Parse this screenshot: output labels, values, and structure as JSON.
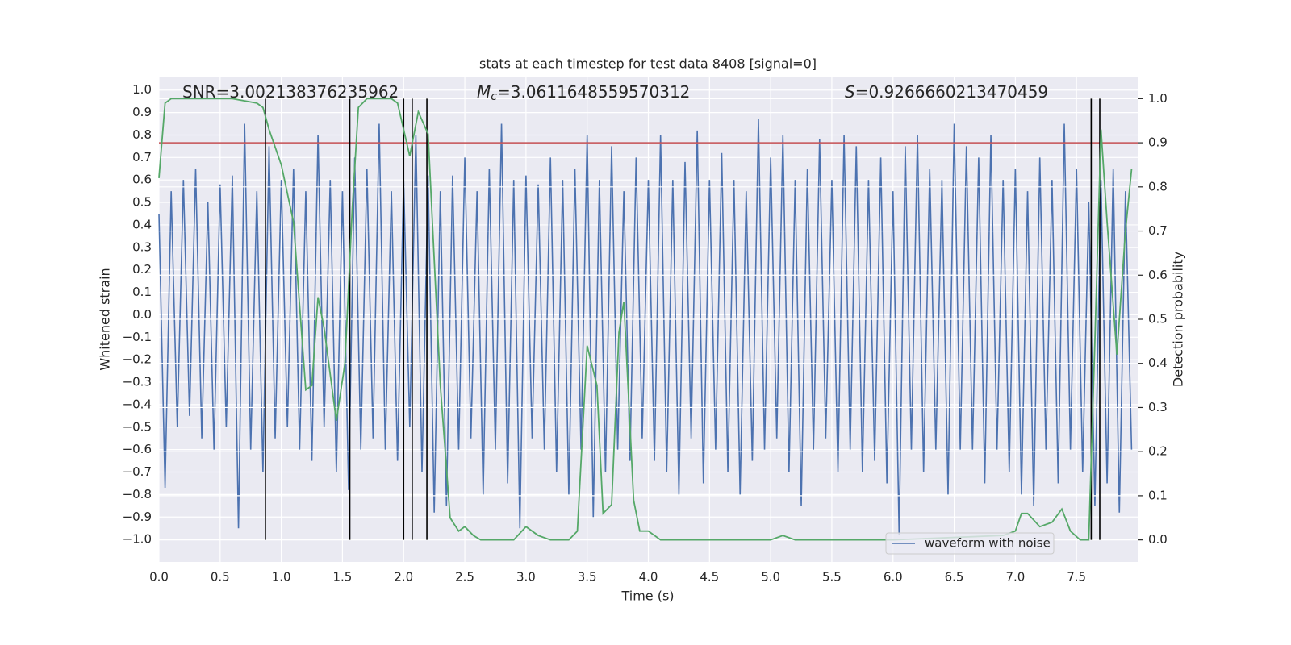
{
  "chart_data": {
    "type": "line",
    "title": "stats at each timestep for test data 8408 [signal=0]",
    "xlabel": "Time (s)",
    "ylabel": "Whitened strain",
    "y2label": "Detection probability",
    "xlim": [
      0,
      8.0
    ],
    "ylim": [
      -1.1,
      1.06
    ],
    "y2lim": [
      -0.05,
      1.05
    ],
    "xticks": [
      {
        "value": 0,
        "label": "0.0"
      },
      0.5,
      {
        "value": 1,
        "label": "1.0"
      },
      1.5,
      {
        "value": 2,
        "label": "2.0"
      },
      2.5,
      {
        "value": 3,
        "label": "3.0"
      },
      3.5,
      {
        "value": 4,
        "label": "4.0"
      },
      4.5,
      {
        "value": 5,
        "label": "5.0"
      },
      5.5,
      {
        "value": 6,
        "label": "6.0"
      },
      6.5,
      {
        "value": 7,
        "label": "7.0"
      },
      7.5
    ],
    "yticks": [
      {
        "value": 1,
        "label": "1.0"
      },
      0.9,
      0.8,
      0.7,
      0.6,
      0.5,
      0.4,
      0.3,
      0.2,
      0.1,
      {
        "value": 0,
        "label": "0.0"
      },
      {
        "value": -0.1,
        "label": "−0.1"
      },
      {
        "value": -0.2,
        "label": "−0.2"
      },
      {
        "value": -0.3,
        "label": "−0.3"
      },
      {
        "value": -0.4,
        "label": "−0.4"
      },
      {
        "value": -0.5,
        "label": "−0.5"
      },
      {
        "value": -0.6,
        "label": "−0.6"
      },
      {
        "value": -0.7,
        "label": "−0.7"
      },
      {
        "value": -0.8,
        "label": "−0.8"
      },
      {
        "value": -0.9,
        "label": "−0.9"
      },
      {
        "value": -1,
        "label": "−1.0"
      }
    ],
    "y2ticks": [
      {
        "value": 0,
        "label": "0.0"
      },
      0.1,
      0.2,
      0.3,
      0.4,
      0.5,
      0.6,
      0.7,
      0.8,
      0.9,
      {
        "value": 1,
        "label": "1.0"
      }
    ],
    "grid": true,
    "legend": "lower right",
    "annotations": [
      {
        "text": "SNR=3.002138376235962"
      },
      {
        "symbol": "M",
        "subscript": "c",
        "text": "=3.0611648559570312"
      },
      {
        "symbol": "S",
        "text": "=0.9266660213470459"
      }
    ],
    "threshold": {
      "value": 0.9,
      "color": "#c44e52",
      "axis": "y2"
    },
    "vlines": {
      "x": [
        0.87,
        1.56,
        2.0,
        2.07,
        2.19,
        7.62,
        7.69
      ],
      "ymin": 0,
      "ymax": 1,
      "color": "#000000",
      "axis": "y2"
    },
    "series": [
      {
        "name": "waveform with noise",
        "color": "#4c72b0",
        "x": [
          0,
          0.05,
          0.1,
          0.15,
          0.2,
          0.25,
          0.3,
          0.35,
          0.4,
          0.45,
          0.5,
          0.55,
          0.6,
          0.65,
          0.7,
          0.75,
          0.8,
          0.85,
          0.9,
          0.95,
          1.0,
          1.05,
          1.1,
          1.15,
          1.2,
          1.25,
          1.3,
          1.35,
          1.4,
          1.45,
          1.5,
          1.55,
          1.6,
          1.65,
          1.7,
          1.75,
          1.8,
          1.85,
          1.9,
          1.95,
          2.0,
          2.05,
          2.1,
          2.15,
          2.2,
          2.25,
          2.3,
          2.35,
          2.4,
          2.45,
          2.5,
          2.55,
          2.6,
          2.65,
          2.7,
          2.75,
          2.8,
          2.85,
          2.9,
          2.95,
          3.0,
          3.05,
          3.1,
          3.15,
          3.2,
          3.25,
          3.3,
          3.35,
          3.4,
          3.45,
          3.5,
          3.55,
          3.6,
          3.65,
          3.7,
          3.75,
          3.8,
          3.85,
          3.9,
          3.95,
          4.0,
          4.05,
          4.1,
          4.15,
          4.2,
          4.25,
          4.3,
          4.35,
          4.4,
          4.45,
          4.5,
          4.55,
          4.6,
          4.65,
          4.7,
          4.75,
          4.8,
          4.85,
          4.9,
          4.95,
          5.0,
          5.05,
          5.1,
          5.15,
          5.2,
          5.25,
          5.3,
          5.35,
          5.4,
          5.45,
          5.5,
          5.55,
          5.6,
          5.65,
          5.7,
          5.75,
          5.8,
          5.85,
          5.9,
          5.95,
          6.0,
          6.05,
          6.1,
          6.15,
          6.2,
          6.25,
          6.3,
          6.35,
          6.4,
          6.45,
          6.5,
          6.55,
          6.6,
          6.65,
          6.7,
          6.75,
          6.8,
          6.85,
          6.9,
          6.95,
          7.0,
          7.05,
          7.1,
          7.15,
          7.2,
          7.25,
          7.3,
          7.35,
          7.4,
          7.45,
          7.5,
          7.55,
          7.6,
          7.65,
          7.7,
          7.75,
          7.8,
          7.85,
          7.9,
          7.95
        ],
        "values": [
          0.45,
          -0.77,
          0.55,
          -0.5,
          0.6,
          -0.45,
          0.65,
          -0.55,
          0.5,
          -0.6,
          0.58,
          -0.5,
          0.62,
          -0.95,
          0.85,
          -0.6,
          0.55,
          -0.7,
          0.75,
          -0.55,
          0.6,
          -0.5,
          0.65,
          -0.6,
          0.55,
          -0.65,
          0.8,
          -0.5,
          0.6,
          -0.7,
          0.55,
          -0.78,
          0.7,
          -0.6,
          0.65,
          -0.55,
          0.85,
          -0.6,
          0.55,
          -0.65,
          0.6,
          -0.5,
          0.8,
          -0.7,
          0.62,
          -0.88,
          0.55,
          -0.85,
          0.62,
          -0.6,
          0.7,
          -0.55,
          0.55,
          -0.8,
          0.65,
          -0.6,
          0.85,
          -0.75,
          0.6,
          -0.95,
          0.62,
          -0.55,
          0.58,
          -0.6,
          0.7,
          -0.7,
          0.6,
          -0.8,
          0.65,
          -0.6,
          0.8,
          -0.9,
          0.6,
          -0.7,
          0.75,
          -0.6,
          0.55,
          -0.65,
          0.7,
          -0.55,
          0.6,
          -0.65,
          0.8,
          -0.7,
          0.6,
          -0.8,
          0.68,
          -0.55,
          0.82,
          -0.75,
          0.6,
          -0.6,
          0.72,
          -0.7,
          0.6,
          -0.8,
          0.55,
          -0.65,
          0.87,
          -0.6,
          0.7,
          -0.55,
          0.8,
          -0.7,
          0.6,
          -0.85,
          0.65,
          -0.6,
          0.78,
          -0.55,
          0.6,
          -0.7,
          0.8,
          -0.6,
          0.75,
          -0.7,
          0.6,
          -0.65,
          0.7,
          -0.75,
          0.55,
          -0.98,
          0.75,
          -0.6,
          0.8,
          -0.7,
          0.65,
          -0.6,
          0.6,
          -0.8,
          0.85,
          -0.6,
          0.75,
          -0.6,
          0.7,
          -0.75,
          0.8,
          -0.6,
          0.6,
          -0.7,
          0.65,
          -0.8,
          0.55,
          -0.85,
          0.7,
          -0.6,
          0.6,
          -0.75,
          0.85,
          -0.6,
          0.65,
          -0.7,
          0.5,
          -0.85,
          0.6,
          -0.75,
          0.65,
          -0.88,
          0.55,
          -0.6
        ]
      },
      {
        "color": "#55a868",
        "axis": "y2",
        "x": [
          0,
          0.05,
          0.1,
          0.2,
          0.4,
          0.6,
          0.8,
          0.85,
          0.9,
          1.0,
          1.1,
          1.2,
          1.25,
          1.3,
          1.35,
          1.45,
          1.52,
          1.58,
          1.63,
          1.7,
          1.9,
          1.95,
          2.05,
          2.12,
          2.2,
          2.3,
          2.38,
          2.45,
          2.5,
          2.57,
          2.63,
          2.9,
          3.0,
          3.1,
          3.2,
          3.35,
          3.42,
          3.5,
          3.58,
          3.63,
          3.7,
          3.76,
          3.8,
          3.88,
          3.93,
          4.0,
          4.1,
          5.0,
          5.1,
          5.2,
          6.0,
          6.9,
          7.0,
          7.05,
          7.1,
          7.2,
          7.3,
          7.38,
          7.45,
          7.53,
          7.6,
          7.65,
          7.7,
          7.75,
          7.83,
          7.9,
          7.95
        ],
        "values": [
          0.82,
          0.99,
          1.0,
          1.0,
          1.0,
          1.0,
          0.99,
          0.98,
          0.93,
          0.85,
          0.72,
          0.34,
          0.35,
          0.55,
          0.48,
          0.27,
          0.4,
          0.75,
          0.98,
          1.0,
          1.0,
          0.99,
          0.87,
          0.97,
          0.92,
          0.35,
          0.05,
          0.02,
          0.03,
          0.01,
          0.0,
          0.0,
          0.03,
          0.01,
          0.0,
          0.0,
          0.02,
          0.44,
          0.35,
          0.06,
          0.08,
          0.47,
          0.54,
          0.09,
          0.02,
          0.02,
          0.0,
          0.0,
          0.01,
          0.0,
          0.0,
          0.01,
          0.02,
          0.06,
          0.06,
          0.03,
          0.04,
          0.07,
          0.02,
          0.0,
          0.0,
          0.45,
          0.93,
          0.72,
          0.42,
          0.7,
          0.84
        ]
      }
    ]
  }
}
